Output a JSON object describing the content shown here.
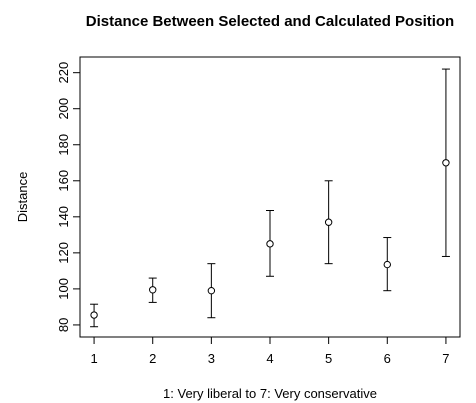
{
  "chart_data": {
    "type": "scatter",
    "title": "Distance Between Selected and Calculated Position",
    "xlabel": "1: Very liberal to 7: Very conservative",
    "ylabel": "Distance",
    "x": [
      1,
      2,
      3,
      4,
      5,
      6,
      7
    ],
    "y": [
      85.5,
      99.5,
      99,
      125,
      137,
      113.5,
      170
    ],
    "error_low": [
      79,
      92.5,
      84,
      107,
      114,
      99,
      118
    ],
    "error_high": [
      91.5,
      106,
      114,
      143.5,
      160,
      128.5,
      222
    ],
    "xticks": [
      "1",
      "2",
      "3",
      "4",
      "5",
      "6",
      "7"
    ],
    "yticks": [
      "80",
      "100",
      "120",
      "140",
      "160",
      "180",
      "200",
      "220"
    ],
    "xlim": [
      0.76,
      7.24
    ],
    "ylim": [
      73.3,
      228.7
    ],
    "grid": false,
    "marker": "open-circle",
    "error_bars": true
  }
}
